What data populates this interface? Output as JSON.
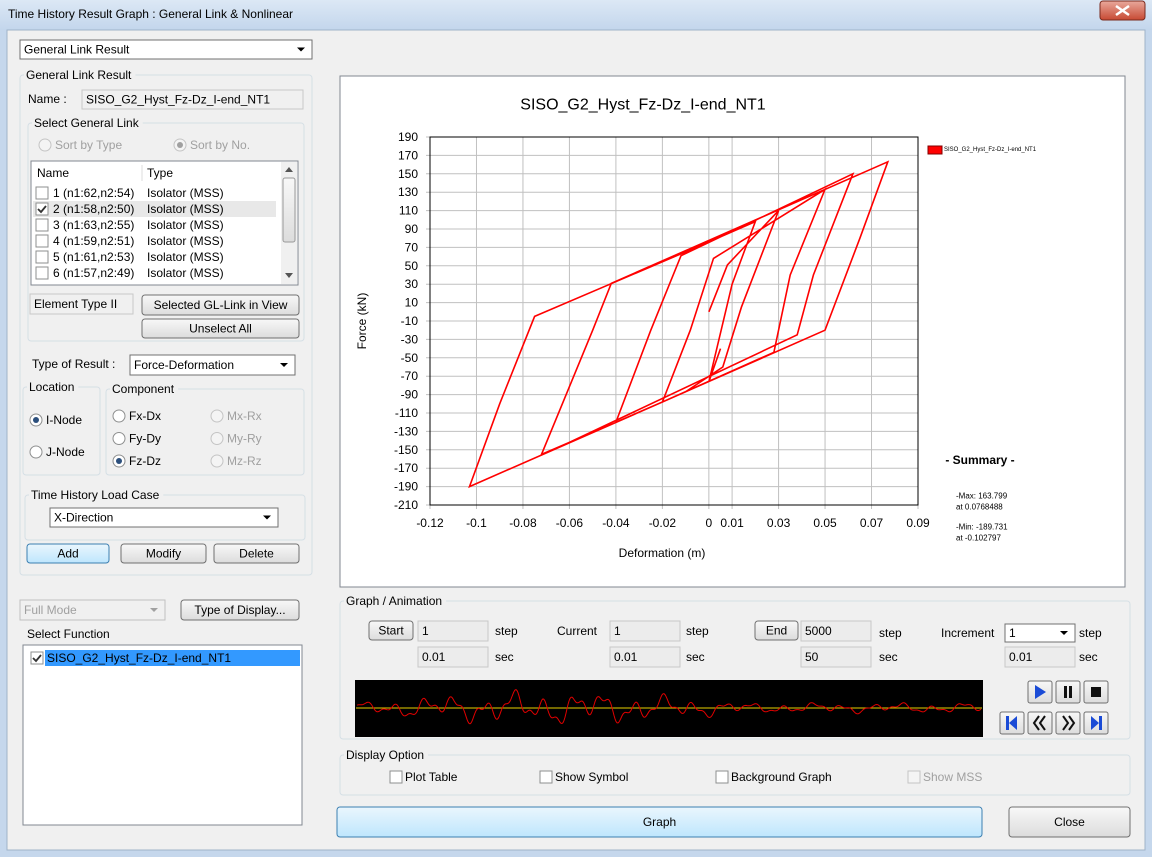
{
  "window": {
    "title": "Time History Result Graph : General Link & Nonlinear"
  },
  "result_select": "General Link Result",
  "link_panel": {
    "title": "General Link Result",
    "name_label": "Name :",
    "name": "SISO_G2_Hyst_Fz-Dz_I-end_NT1",
    "select_title": "Select General Link",
    "sort_options": [
      {
        "label": "Sort by Type",
        "selected": false
      },
      {
        "label": "Sort by No.",
        "selected": true
      }
    ],
    "columns": [
      "Name",
      "Type"
    ],
    "rows": [
      {
        "name": "1 (n1:62,n2:54)",
        "type": "Isolator (MSS)",
        "checked": false
      },
      {
        "name": "2 (n1:58,n2:50)",
        "type": "Isolator (MSS)",
        "checked": true
      },
      {
        "name": "3 (n1:63,n2:55)",
        "type": "Isolator (MSS)",
        "checked": false
      },
      {
        "name": "4 (n1:59,n2:51)",
        "type": "Isolator (MSS)",
        "checked": false
      },
      {
        "name": "5 (n1:61,n2:53)",
        "type": "Isolator (MSS)",
        "checked": false
      },
      {
        "name": "6 (n1:57,n2:49)",
        "type": "Isolator (MSS)",
        "checked": false
      }
    ],
    "element_type": "Element Type II",
    "buttons": [
      "Selected GL-Link in View",
      "Unselect All"
    ]
  },
  "result_type": {
    "label": "Type of Result :",
    "value": "Force-Deformation"
  },
  "location": {
    "title": "Location",
    "options": [
      {
        "label": "I-Node",
        "selected": true
      },
      {
        "label": "J-Node",
        "selected": false
      }
    ]
  },
  "component": {
    "title": "Component",
    "options": [
      {
        "label": "Fx-Dx",
        "selected": false,
        "enabled": true
      },
      {
        "label": "Mx-Rx",
        "selected": false,
        "enabled": false
      },
      {
        "label": "Fy-Dy",
        "selected": false,
        "enabled": true
      },
      {
        "label": "My-Ry",
        "selected": false,
        "enabled": false
      },
      {
        "label": "Fz-Dz",
        "selected": true,
        "enabled": true
      },
      {
        "label": "Mz-Rz",
        "selected": false,
        "enabled": false
      }
    ]
  },
  "load_case": {
    "title": "Time History Load Case",
    "value": "X-Direction",
    "buttons": [
      "Add",
      "Modify",
      "Delete"
    ]
  },
  "display_mode": {
    "value": "Full Mode",
    "button": "Type of Display..."
  },
  "functions": {
    "title": "Select Function",
    "items": [
      {
        "label": "SISO_G2_Hyst_Fz-Dz_I-end_NT1",
        "checked": true
      }
    ]
  },
  "chart_data": {
    "type": "line",
    "title": "SISO_G2_Hyst_Fz-Dz_I-end_NT1",
    "x_label": "Deformation (m)",
    "y_label": "Force (kN)",
    "xlim": [
      -0.12,
      0.09
    ],
    "xticks": [
      -0.12,
      -0.1,
      -0.08,
      -0.06,
      -0.04,
      -0.02,
      0,
      0.01,
      0.03,
      0.05,
      0.07,
      0.09
    ],
    "ylim": [
      -210,
      190
    ],
    "yticks": [
      190,
      170,
      150,
      130,
      110,
      90,
      70,
      50,
      30,
      10,
      -10,
      -30,
      -50,
      -70,
      -90,
      -110,
      -130,
      -150,
      -170,
      -190,
      -210
    ],
    "grid": true,
    "legend": "right",
    "series": [
      {
        "name": "SISO_G2_Hyst_Fz-Dz_I-end_NT1",
        "color": "#ff0000",
        "x": [
          0,
          0.008,
          0.03,
          0.014,
          0.006,
          -0.01,
          -0.02,
          -0.008,
          0.002,
          0.05,
          0.035,
          0.028,
          -0.02,
          -0.04,
          -0.025,
          -0.012,
          0.062,
          0.045,
          0.038,
          -0.06,
          -0.072,
          -0.05,
          -0.042,
          0.077,
          0.065,
          0.05,
          -0.02,
          -0.103,
          -0.09,
          -0.075,
          0,
          0.02,
          0.01,
          0,
          0.005
        ],
        "values": [
          0,
          51,
          110,
          5,
          -60,
          -87,
          -98,
          -20,
          58,
          133,
          40,
          -44,
          -98,
          -120,
          -20,
          61,
          150,
          40,
          -25,
          -142,
          -155,
          -20,
          31,
          163,
          80,
          -20,
          -98,
          -190,
          -100,
          -5,
          76,
          98,
          30,
          -76,
          -40
        ]
      }
    ]
  },
  "summary": {
    "title": "- Summary -",
    "lines": [
      "-Max: 163.799",
      "at 0.0768488",
      "-Min: -189.731",
      "at -0.102797"
    ]
  },
  "animation": {
    "title": "Graph / Animation",
    "start": {
      "button": "Start",
      "step": 1,
      "step_unit": "step",
      "time": 0.01,
      "time_unit": "sec"
    },
    "current": {
      "label": "Current",
      "step": 1,
      "step_unit": "step",
      "time": 0.01,
      "time_unit": "sec"
    },
    "end": {
      "button": "End",
      "step": 5000,
      "step_unit": "step",
      "time": 50,
      "time_unit": "sec"
    },
    "increment": {
      "label": "Increment",
      "step": 1,
      "step_unit": "step",
      "time": 0.01,
      "time_unit": "sec"
    }
  },
  "display_option": {
    "title": "Display Option",
    "options": [
      {
        "label": "Plot Table",
        "checked": false,
        "enabled": true
      },
      {
        "label": "Show Symbol",
        "checked": false,
        "enabled": true
      },
      {
        "label": "Background Graph",
        "checked": false,
        "enabled": true
      },
      {
        "label": "Show MSS",
        "checked": false,
        "enabled": false
      }
    ]
  },
  "actions": [
    "Graph",
    "Close"
  ]
}
